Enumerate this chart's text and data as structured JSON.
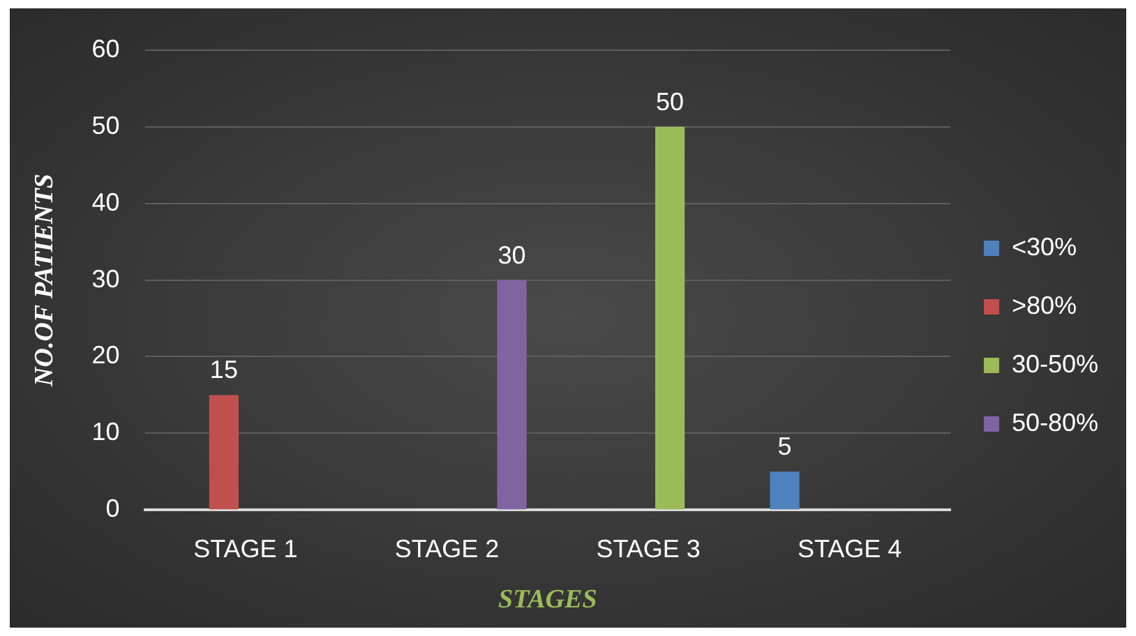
{
  "chart_data": {
    "type": "bar",
    "xlabel": "STAGES",
    "ylabel": "NO.OF PATIENTS",
    "categories": [
      "STAGE 1",
      "STAGE 2",
      "STAGE 3",
      "STAGE 4"
    ],
    "series": [
      {
        "name": "<30%",
        "color": "#4f81bd",
        "values": [
          null,
          null,
          null,
          5
        ]
      },
      {
        "name": ">80%",
        "color": "#c0504d",
        "values": [
          15,
          null,
          null,
          null
        ]
      },
      {
        "name": "30-50%",
        "color": "#9bbb59",
        "values": [
          null,
          null,
          50,
          null
        ]
      },
      {
        "name": "50-80%",
        "color": "#8064a2",
        "values": [
          null,
          30,
          null,
          null
        ]
      }
    ],
    "ylim": [
      0,
      60
    ],
    "yticks": [
      0,
      10,
      20,
      30,
      40,
      50,
      60
    ],
    "grid": "y",
    "legend": "right",
    "data_labels": true
  }
}
